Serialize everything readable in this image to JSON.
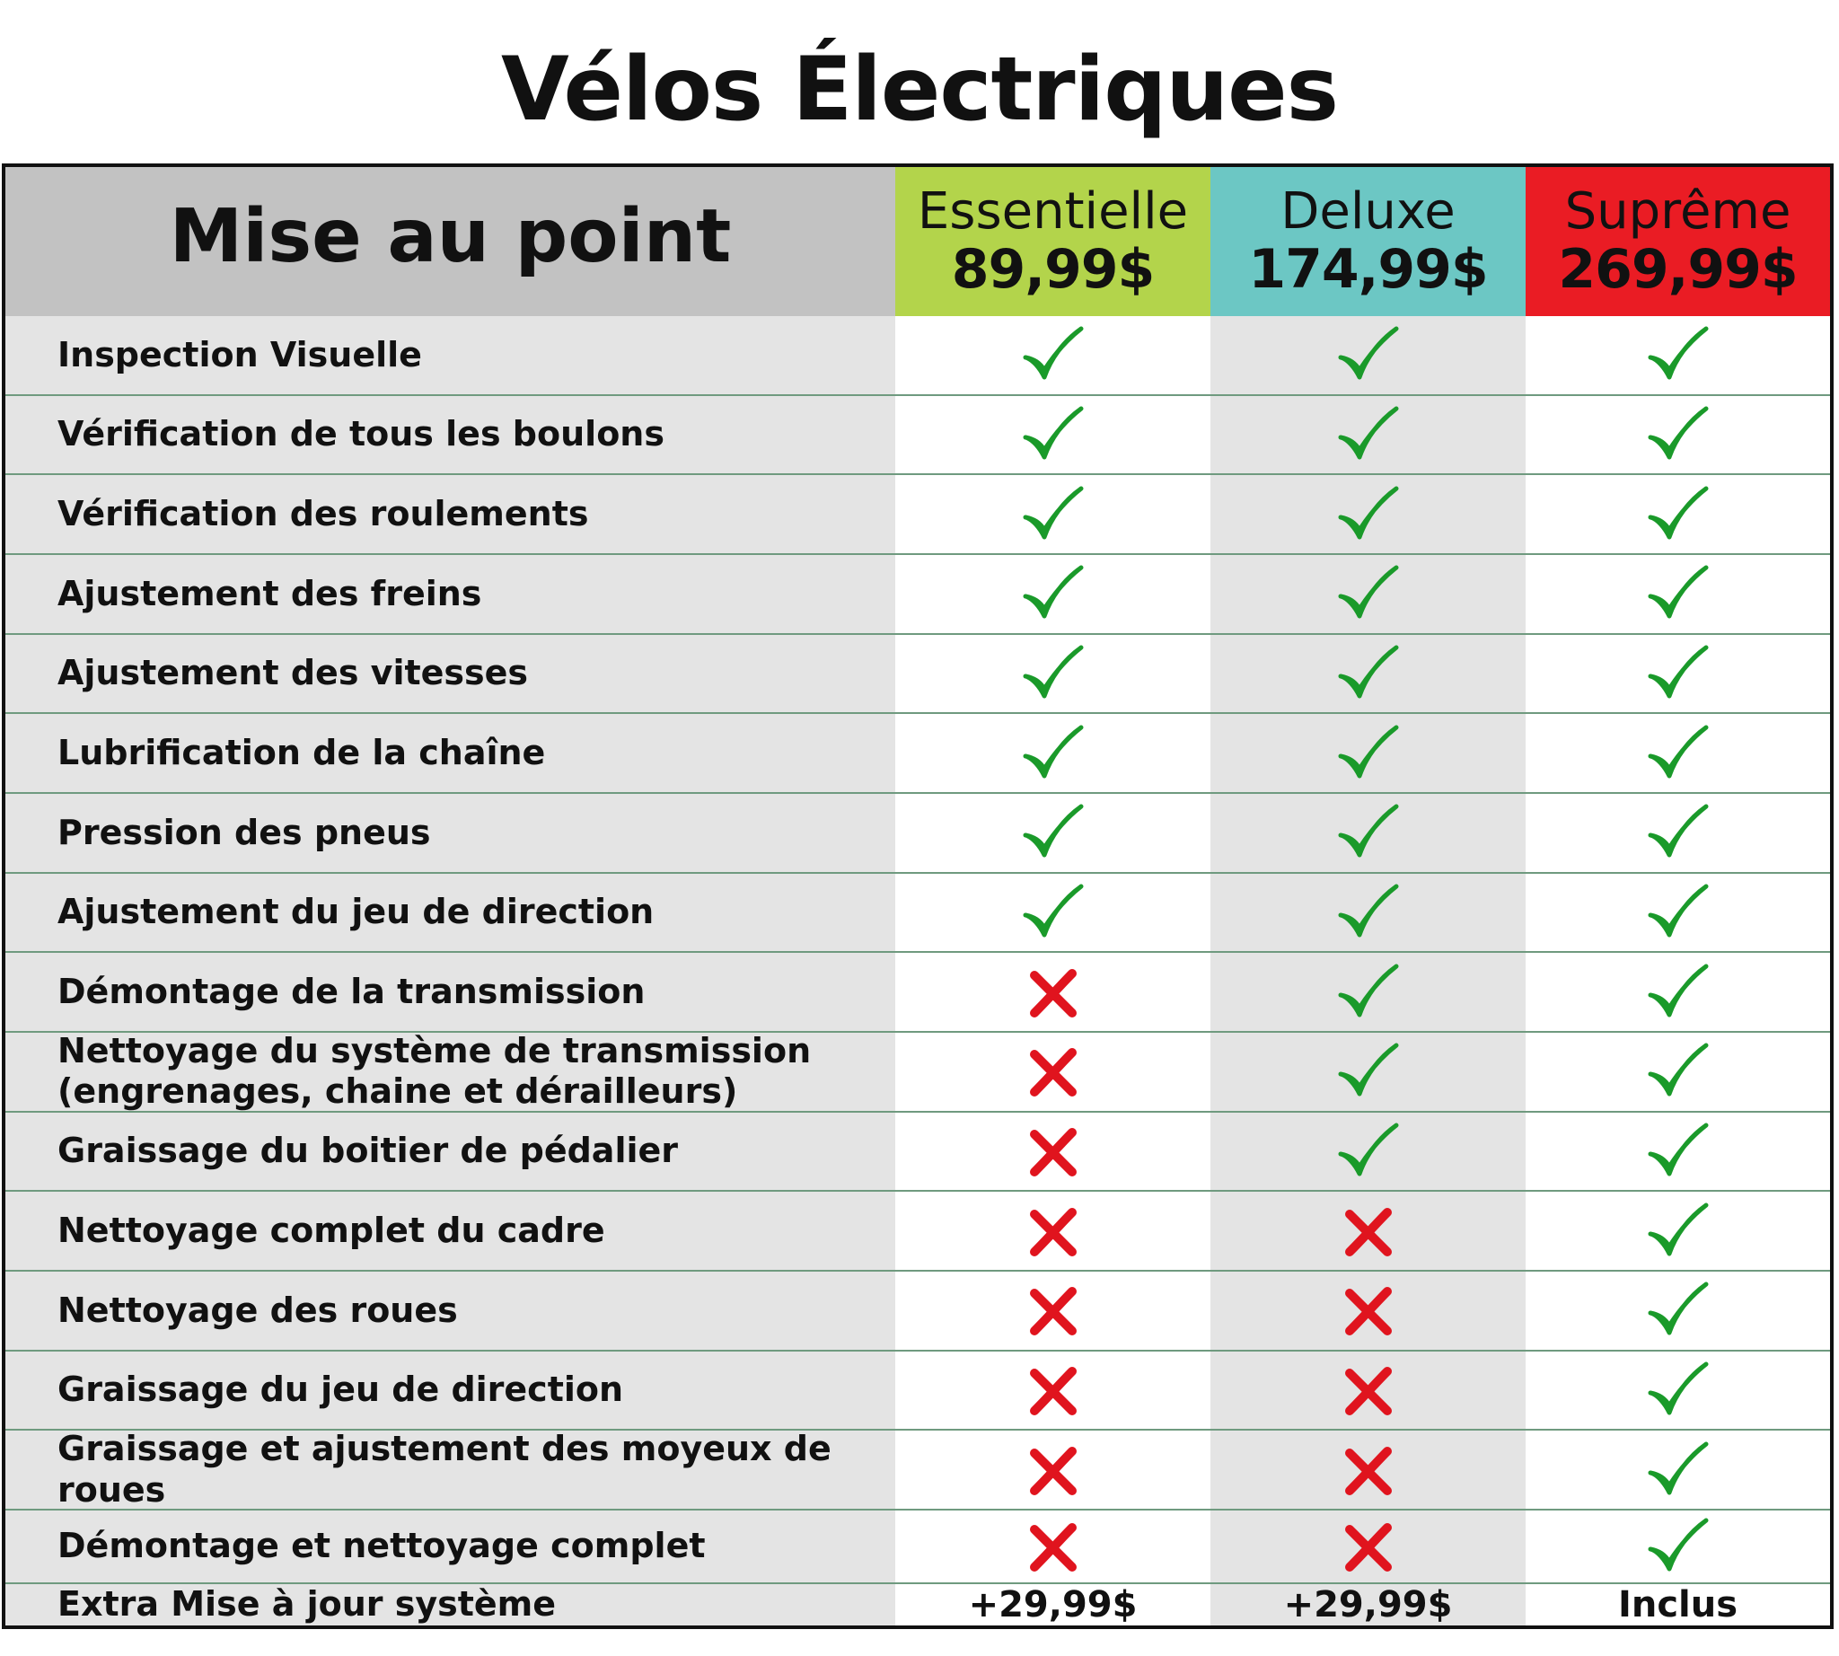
{
  "title": "Vélos Électriques",
  "table": {
    "header_label": "Mise au point",
    "plans": [
      {
        "name": "Essentielle",
        "price": "89,99$",
        "color": "#b3d44b"
      },
      {
        "name": "Deluxe",
        "price": "174,99$",
        "color": "#6cc7c4"
      },
      {
        "name": "Suprême",
        "price": "269,99$",
        "color": "#ea1c24"
      }
    ],
    "rows": [
      {
        "label": "Inspection Visuelle",
        "included": [
          true,
          true,
          true
        ]
      },
      {
        "label": "Vérification de tous les boulons",
        "included": [
          true,
          true,
          true
        ]
      },
      {
        "label": "Vérification des roulements",
        "included": [
          true,
          true,
          true
        ]
      },
      {
        "label": "Ajustement des freins",
        "included": [
          true,
          true,
          true
        ]
      },
      {
        "label": "Ajustement des vitesses",
        "included": [
          true,
          true,
          true
        ]
      },
      {
        "label": "Lubrification de la chaîne",
        "included": [
          true,
          true,
          true
        ]
      },
      {
        "label": "Pression des pneus",
        "included": [
          true,
          true,
          true
        ]
      },
      {
        "label": "Ajustement du jeu de direction",
        "included": [
          true,
          true,
          true
        ]
      },
      {
        "label": "Démontage de la transmission",
        "included": [
          false,
          true,
          true
        ]
      },
      {
        "label": "Nettoyage du système de transmission (engrenages, chaine et dérailleurs)",
        "included": [
          false,
          true,
          true
        ]
      },
      {
        "label": "Graissage du boitier de pédalier",
        "included": [
          false,
          true,
          true
        ]
      },
      {
        "label": "Nettoyage complet du cadre",
        "included": [
          false,
          false,
          true
        ]
      },
      {
        "label": "Nettoyage des roues",
        "included": [
          false,
          false,
          true
        ]
      },
      {
        "label": "Graissage du jeu de direction",
        "included": [
          false,
          false,
          true
        ]
      },
      {
        "label": "Graissage et ajustement des moyeux de roues",
        "included": [
          false,
          false,
          true
        ]
      },
      {
        "label": "Démontage et nettoyage complet",
        "included": [
          false,
          false,
          true
        ]
      }
    ],
    "extra_row": {
      "label": "Extra Mise à jour système",
      "values": [
        "+29,99$",
        "+29,99$",
        "Inclus"
      ]
    }
  },
  "colors": {
    "check": "#1a9a2a",
    "cross": "#e0141e",
    "header_gray": "#c2c2c2",
    "row_gray": "#e4e4e4"
  },
  "icons": {
    "included": "check-icon",
    "excluded": "cross-icon"
  }
}
